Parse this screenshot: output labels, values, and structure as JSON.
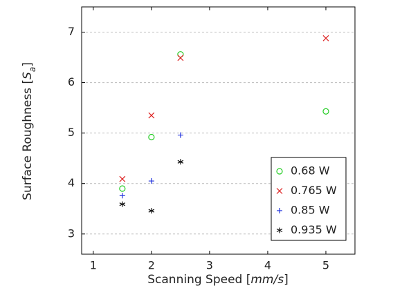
{
  "chart_data": {
    "type": "scatter",
    "xlabel": [
      {
        "text": "Scanning Speed ["
      },
      {
        "text": "mm/s",
        "italic": true
      },
      {
        "text": "]"
      }
    ],
    "ylabel": [
      {
        "text": "Surface Roughness ["
      },
      {
        "text": "S",
        "italic": true
      },
      {
        "text": "a",
        "italic": true,
        "sub": true
      },
      {
        "text": "]"
      }
    ],
    "xlim": [
      0.8,
      5.5
    ],
    "xticks": [
      1,
      2,
      3,
      4,
      5
    ],
    "ylim": [
      2.6,
      7.5
    ],
    "yticks": [
      3,
      4,
      5,
      6,
      7
    ],
    "grid": true,
    "legend": "lower right",
    "series": [
      {
        "name": "0.68 W",
        "color": "#22cc22",
        "marker": "circle",
        "x": [
          1.5,
          2,
          2.5,
          5
        ],
        "values": [
          3.9,
          4.92,
          6.56,
          5.43
        ]
      },
      {
        "name": "0.765 W",
        "color": "#dd2222",
        "marker": "x",
        "x": [
          1.5,
          2,
          2.5,
          5
        ],
        "values": [
          4.09,
          5.35,
          6.49,
          6.88
        ]
      },
      {
        "name": "0.85 W",
        "color": "#2233dd",
        "marker": "plus",
        "x": [
          1.5,
          2,
          2.5
        ],
        "values": [
          3.76,
          4.05,
          4.96
        ]
      },
      {
        "name": "0.935 W",
        "color": "#111111",
        "marker": "star",
        "x": [
          1.5,
          2,
          2.5
        ],
        "values": [
          3.59,
          3.46,
          4.43
        ]
      }
    ]
  }
}
